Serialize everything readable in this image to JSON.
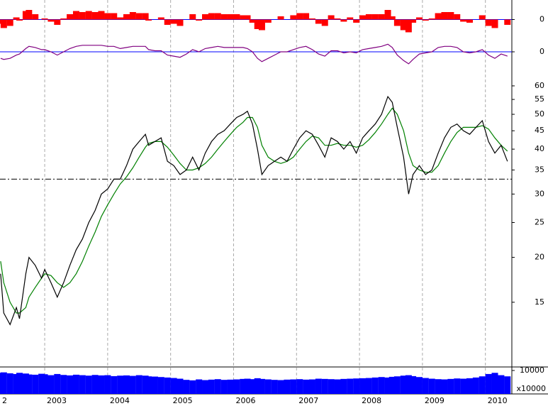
{
  "chart_data": [
    {
      "type": "bar",
      "color": "#ff0000",
      "grid": true,
      "grid_color": "#0000ff",
      "xlim": [
        2002.29,
        2010.42
      ],
      "ylim": [
        -1.5,
        1.5
      ],
      "yticks": [
        0
      ],
      "x": [
        2002.3,
        2002.35,
        2002.45,
        2002.55,
        2002.6,
        2002.7,
        2002.75,
        2002.85,
        2002.95,
        2003.0,
        2003.1,
        2003.2,
        2003.3,
        2003.4,
        2003.5,
        2003.6,
        2003.7,
        2003.8,
        2003.9,
        2004.0,
        2004.1,
        2004.2,
        2004.3,
        2004.4,
        2004.5,
        2004.6,
        2004.65,
        2004.75,
        2004.85,
        2004.95,
        2005.05,
        2005.15,
        2005.25,
        2005.35,
        2005.45,
        2005.55,
        2005.65,
        2005.75,
        2005.85,
        2005.95,
        2006.05,
        2006.15,
        2006.22,
        2006.3,
        2006.38,
        2006.45,
        2006.55,
        2006.65,
        2006.75,
        2006.85,
        2006.95,
        2007.05,
        2007.15,
        2007.25,
        2007.35,
        2007.45,
        2007.55,
        2007.65,
        2007.75,
        2007.85,
        2007.95,
        2008.05,
        2008.15,
        2008.25,
        2008.35,
        2008.45,
        2008.52,
        2008.6,
        2008.7,
        2008.78,
        2008.85,
        2008.95,
        2009.05,
        2009.15,
        2009.25,
        2009.35,
        2009.45,
        2009.55,
        2009.65,
        2009.75,
        2009.85,
        2009.95,
        2010.05,
        2010.15,
        2010.25,
        2010.35
      ],
      "values": [
        -0.4,
        -0.8,
        -0.6,
        0.2,
        -0.1,
        0.8,
        0.9,
        0.5,
        0,
        0.1,
        -0.2,
        -0.5,
        0.1,
        0.5,
        0.8,
        0.7,
        0.8,
        0.7,
        0.8,
        0.6,
        0.6,
        0.2,
        0.5,
        0.7,
        0.6,
        0.6,
        -0.1,
        0,
        0.2,
        -0.5,
        -0.4,
        -0.6,
        0,
        0.5,
        -0.1,
        0.5,
        0.6,
        0.6,
        0.5,
        0.5,
        0.5,
        0.4,
        0.4,
        -0.3,
        -0.9,
        -1,
        -0.3,
        0,
        0.3,
        0,
        0.4,
        0.6,
        0.6,
        0.1,
        -0.4,
        -0.6,
        0.4,
        0.1,
        -0.2,
        0.2,
        -0.3,
        0.4,
        0.5,
        0.5,
        0.5,
        0.9,
        0.3,
        -0.6,
        -1,
        -1.2,
        -0.3,
        0.2,
        -0.1,
        0.1,
        0.6,
        0.7,
        0.7,
        0.5,
        -0.2,
        -0.3,
        0,
        0.4,
        -0.6,
        -0.8,
        0,
        -0.5
      ]
    },
    {
      "type": "line",
      "grid": true,
      "grid_color": "#0000ff",
      "xlim": [
        2002.29,
        2010.42
      ],
      "ylim": [
        -1.5,
        1.5
      ],
      "yticks": [
        0
      ],
      "x": [
        2002.3,
        2002.35,
        2002.45,
        2002.55,
        2002.6,
        2002.7,
        2002.75,
        2002.85,
        2002.95,
        2003.0,
        2003.1,
        2003.2,
        2003.3,
        2003.4,
        2003.5,
        2003.6,
        2003.7,
        2003.8,
        2003.9,
        2004.0,
        2004.1,
        2004.2,
        2004.3,
        2004.4,
        2004.5,
        2004.6,
        2004.65,
        2004.75,
        2004.85,
        2004.95,
        2005.05,
        2005.15,
        2005.25,
        2005.35,
        2005.45,
        2005.55,
        2005.65,
        2005.75,
        2005.85,
        2005.95,
        2006.05,
        2006.15,
        2006.22,
        2006.3,
        2006.38,
        2006.45,
        2006.55,
        2006.65,
        2006.75,
        2006.85,
        2006.95,
        2007.05,
        2007.15,
        2007.25,
        2007.35,
        2007.45,
        2007.55,
        2007.65,
        2007.75,
        2007.85,
        2007.95,
        2008.05,
        2008.15,
        2008.25,
        2008.35,
        2008.45,
        2008.52,
        2008.6,
        2008.7,
        2008.78,
        2008.85,
        2008.95,
        2009.05,
        2009.15,
        2009.25,
        2009.35,
        2009.45,
        2009.55,
        2009.65,
        2009.75,
        2009.85,
        2009.95,
        2010.05,
        2010.15,
        2010.25,
        2010.35
      ],
      "series": [
        {
          "color": "#800080",
          "values": [
            -0.6,
            -0.7,
            -0.6,
            -0.3,
            -0.2,
            0.3,
            0.5,
            0.4,
            0.2,
            0.2,
            0,
            -0.3,
            0,
            0.3,
            0.5,
            0.6,
            0.6,
            0.6,
            0.6,
            0.5,
            0.5,
            0.3,
            0.4,
            0.5,
            0.5,
            0.5,
            0.2,
            0.1,
            0.1,
            -0.3,
            -0.4,
            -0.5,
            -0.2,
            0.2,
            0,
            0.3,
            0.4,
            0.5,
            0.4,
            0.4,
            0.4,
            0.4,
            0.3,
            0,
            -0.6,
            -0.9,
            -0.6,
            -0.3,
            0,
            0,
            0.2,
            0.4,
            0.5,
            0.2,
            -0.2,
            -0.4,
            0.1,
            0.1,
            -0.1,
            0,
            -0.1,
            0.2,
            0.3,
            0.4,
            0.5,
            0.7,
            0.4,
            -0.3,
            -0.8,
            -1.1,
            -0.7,
            -0.2,
            -0.1,
            0,
            0.4,
            0.5,
            0.5,
            0.4,
            0,
            -0.1,
            0,
            0.2,
            -0.3,
            -0.6,
            -0.2,
            -0.4
          ]
        }
      ]
    },
    {
      "type": "line",
      "grid": false,
      "log_scale": true,
      "hline": 33,
      "hline_color": "#000000",
      "xlim": [
        2002.29,
        2010.42
      ],
      "ylim": [
        10,
        66
      ],
      "yticks": [
        15,
        20,
        25,
        30,
        35,
        40,
        45,
        50,
        55,
        60
      ],
      "x": [
        2002.3,
        2002.35,
        2002.45,
        2002.55,
        2002.6,
        2002.7,
        2002.75,
        2002.85,
        2002.95,
        2003.0,
        2003.1,
        2003.2,
        2003.3,
        2003.4,
        2003.5,
        2003.6,
        2003.7,
        2003.8,
        2003.9,
        2004.0,
        2004.1,
        2004.2,
        2004.3,
        2004.4,
        2004.5,
        2004.6,
        2004.65,
        2004.75,
        2004.85,
        2004.95,
        2005.05,
        2005.15,
        2005.25,
        2005.35,
        2005.45,
        2005.55,
        2005.65,
        2005.75,
        2005.85,
        2005.95,
        2006.05,
        2006.15,
        2006.22,
        2006.3,
        2006.38,
        2006.45,
        2006.55,
        2006.65,
        2006.75,
        2006.85,
        2006.95,
        2007.05,
        2007.15,
        2007.25,
        2007.35,
        2007.45,
        2007.55,
        2007.65,
        2007.75,
        2007.85,
        2007.95,
        2008.05,
        2008.15,
        2008.25,
        2008.35,
        2008.45,
        2008.52,
        2008.6,
        2008.7,
        2008.78,
        2008.85,
        2008.95,
        2009.05,
        2009.15,
        2009.25,
        2009.35,
        2009.45,
        2009.55,
        2009.65,
        2009.75,
        2009.85,
        2009.95,
        2010.05,
        2010.15,
        2010.25,
        2010.35
      ],
      "series": [
        {
          "color": "#008000",
          "values": [
            19.5,
            17,
            15,
            14,
            14,
            14.5,
            15.5,
            16.5,
            17.5,
            18,
            17.8,
            17,
            16.5,
            17,
            18,
            19.5,
            21.5,
            23.5,
            26,
            28,
            30,
            32,
            33.5,
            35.5,
            38,
            40.5,
            41.5,
            42,
            42,
            40.5,
            38.5,
            36.5,
            35,
            35,
            35.5,
            36.5,
            38,
            40,
            42,
            44,
            46,
            47.5,
            49,
            49,
            46,
            41,
            38,
            37,
            36.5,
            37,
            38,
            40,
            42,
            43.5,
            43,
            41,
            41,
            41.5,
            41,
            41,
            40.5,
            41,
            42.5,
            44.5,
            47,
            50,
            52,
            50,
            45,
            39,
            36,
            35,
            34.5,
            34.5,
            36,
            39,
            42,
            44.5,
            46,
            46,
            46,
            46.5,
            45.5,
            43,
            41,
            39.5
          ]
        },
        {
          "color": "#000000",
          "values": [
            18,
            14,
            13,
            14.5,
            13.5,
            18,
            20,
            19,
            17.5,
            18.5,
            17,
            15.5,
            17,
            19,
            21,
            22.5,
            25,
            27,
            30,
            31,
            33,
            33,
            36,
            40,
            42,
            44,
            41,
            42,
            43,
            37,
            36,
            34,
            35,
            38,
            35,
            39,
            42,
            44,
            45,
            47,
            49,
            50,
            51,
            47,
            40,
            34,
            36,
            37,
            38,
            37,
            40,
            43,
            45,
            44,
            41,
            38,
            43,
            42,
            40,
            42,
            39,
            43,
            45,
            47,
            50,
            56,
            54,
            46,
            38,
            30,
            34,
            36,
            34,
            35,
            39,
            43,
            46,
            47,
            45,
            44,
            46,
            48,
            42,
            39,
            41,
            37
          ]
        }
      ]
    },
    {
      "type": "bar",
      "color": "#0000ff",
      "grid": false,
      "y_unit_label": "x10000",
      "xlim": [
        2002.29,
        2010.42
      ],
      "ylim": [
        0,
        11200
      ],
      "yticks": [
        10000
      ],
      "xticks": [
        {
          "value": 2002,
          "label": "2"
        },
        2003,
        2004,
        2005,
        2006,
        2007,
        2008,
        2009,
        2010
      ],
      "x": [
        2002.3,
        2002.35,
        2002.45,
        2002.55,
        2002.6,
        2002.7,
        2002.75,
        2002.85,
        2002.95,
        2003.0,
        2003.1,
        2003.2,
        2003.3,
        2003.4,
        2003.5,
        2003.6,
        2003.7,
        2003.8,
        2003.9,
        2004.0,
        2004.1,
        2004.2,
        2004.3,
        2004.4,
        2004.5,
        2004.6,
        2004.65,
        2004.75,
        2004.85,
        2004.95,
        2005.05,
        2005.15,
        2005.25,
        2005.35,
        2005.45,
        2005.55,
        2005.65,
        2005.75,
        2005.85,
        2005.95,
        2006.05,
        2006.15,
        2006.22,
        2006.3,
        2006.38,
        2006.45,
        2006.55,
        2006.65,
        2006.75,
        2006.85,
        2006.95,
        2007.05,
        2007.15,
        2007.25,
        2007.35,
        2007.45,
        2007.55,
        2007.65,
        2007.75,
        2007.85,
        2007.95,
        2008.05,
        2008.15,
        2008.25,
        2008.35,
        2008.45,
        2008.52,
        2008.6,
        2008.7,
        2008.78,
        2008.85,
        2008.95,
        2009.05,
        2009.15,
        2009.25,
        2009.35,
        2009.45,
        2009.55,
        2009.65,
        2009.75,
        2009.85,
        2009.95,
        2010.05,
        2010.15,
        2010.25,
        2010.35
      ],
      "values": [
        9000,
        9200,
        8800,
        8500,
        9000,
        8700,
        8300,
        8200,
        8600,
        8400,
        8000,
        8500,
        8100,
        7900,
        8200,
        8000,
        7800,
        8100,
        7900,
        8000,
        7600,
        7800,
        7900,
        7700,
        8000,
        7800,
        7500,
        7400,
        7200,
        7000,
        6800,
        6500,
        6000,
        5800,
        6200,
        5900,
        6100,
        6300,
        6000,
        6100,
        6200,
        6400,
        6500,
        6300,
        6700,
        6400,
        6200,
        6000,
        5900,
        6100,
        6200,
        6300,
        6100,
        6200,
        6500,
        6400,
        6300,
        6200,
        6400,
        6500,
        6600,
        6700,
        6800,
        7000,
        7200,
        7000,
        7300,
        7500,
        7800,
        8000,
        7600,
        7200,
        6800,
        6500,
        6300,
        6200,
        6400,
        6600,
        6500,
        6700,
        7000,
        7500,
        8500,
        9000,
        8000,
        7500
      ]
    }
  ]
}
